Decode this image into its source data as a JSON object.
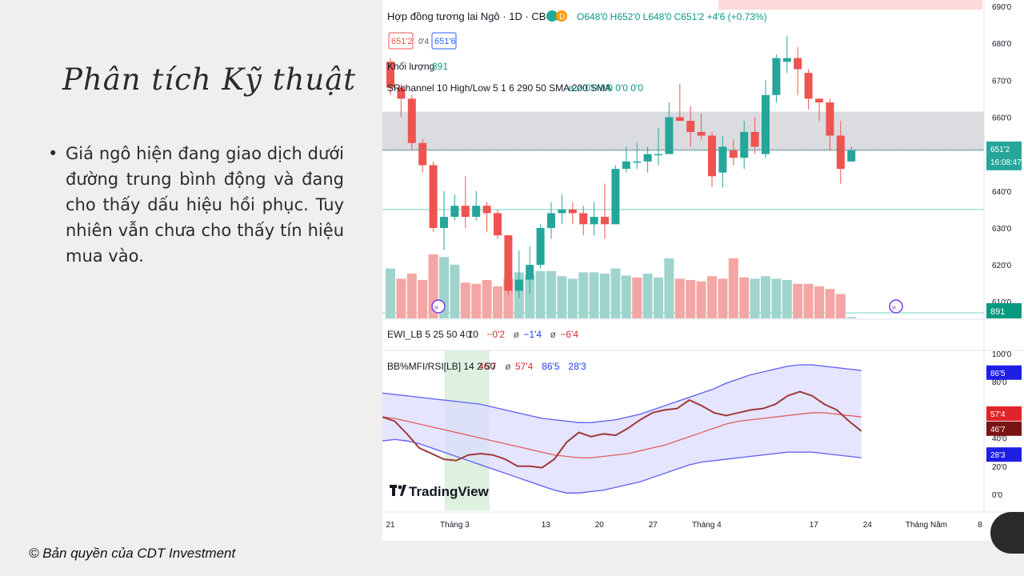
{
  "slide": {
    "title": "Phân tích Kỹ thuật",
    "bullet": "Giá ngô hiện đang giao dịch dưới đường trung bình động và đang cho thấy dấu hiệu hồi phục. Tuy nhiên vẫn chưa cho thấy tín hiệu mua vào.",
    "copyright": "© Bản quyền của CDT Investment"
  },
  "chart_data": {
    "type": "candlestick",
    "header": {
      "title": "Hợp đồng tương lai Ngô · 1D · CBOT",
      "badge": "D",
      "ohlc": "O648'0 H652'0 L648'0 C651'2 +4'6 (+0.73%)",
      "bid": "651'2",
      "spread": "0'4",
      "ask": "651'6",
      "volume_label": "Khối lượng",
      "volume_value": "891",
      "indicator": "SRchannel 10 High/Low 5 1 6 290 50 SMA 200 SMA",
      "indicator_vals": "ø ø 0'0 0'0 0'0 0'0"
    },
    "price_axis": {
      "ticks": [
        "690'0",
        "680'0",
        "670'0",
        "660'0",
        "650'0",
        "640'0",
        "630'0",
        "620'0",
        "610'0"
      ],
      "tick_values": [
        690,
        680,
        670,
        660,
        650,
        640,
        630,
        620,
        610
      ],
      "last_price": "651'2",
      "countdown": "16:08:47",
      "volume_badge": "891"
    },
    "ylim": [
      605.5,
      690
    ],
    "channel": [
      651,
      661.5
    ],
    "support_lines": [
      635,
      607
    ],
    "candles": [
      [
        675,
        668,
        676,
        666
      ],
      [
        668,
        665,
        669,
        660
      ],
      [
        665,
        653,
        666,
        651
      ],
      [
        653,
        647,
        654,
        645
      ],
      [
        647,
        630,
        648,
        629
      ],
      [
        630,
        633,
        640,
        624
      ],
      [
        633,
        636,
        639,
        632
      ],
      [
        636,
        633,
        644,
        630
      ],
      [
        633,
        636,
        640,
        632
      ],
      [
        636,
        634,
        637,
        629
      ],
      [
        634,
        628,
        635,
        627
      ],
      [
        628,
        613,
        628,
        612
      ],
      [
        613,
        616,
        624,
        611
      ],
      [
        616,
        620,
        625,
        612
      ],
      [
        620,
        630,
        631,
        619
      ],
      [
        630,
        634,
        637,
        627
      ],
      [
        634,
        635,
        639,
        631
      ],
      [
        635,
        634,
        637,
        631
      ],
      [
        634,
        631,
        636,
        628
      ],
      [
        631,
        633,
        637,
        628
      ],
      [
        633,
        631,
        642,
        627
      ],
      [
        631,
        646,
        647,
        631
      ],
      [
        646,
        648,
        652,
        645
      ],
      [
        648,
        648,
        653,
        646
      ],
      [
        648,
        650,
        652,
        645
      ],
      [
        650,
        650,
        657,
        647
      ],
      [
        650,
        660,
        664,
        650
      ],
      [
        660,
        659,
        669,
        659
      ],
      [
        659,
        656,
        663,
        652
      ],
      [
        656,
        655,
        661,
        654
      ],
      [
        655,
        644,
        656,
        641
      ],
      [
        645,
        652,
        655,
        641
      ],
      [
        651,
        649,
        654,
        647
      ],
      [
        649,
        656,
        659,
        646
      ],
      [
        656,
        652,
        660,
        650
      ],
      [
        650,
        666,
        670,
        649
      ],
      [
        666,
        676,
        677,
        664
      ],
      [
        675,
        676,
        682,
        672
      ],
      [
        676,
        673,
        679,
        666
      ],
      [
        672,
        665,
        673,
        662
      ],
      [
        665,
        664,
        665,
        659
      ],
      [
        664,
        655,
        665,
        651
      ],
      [
        655,
        646,
        659,
        642
      ],
      [
        648,
        651,
        652,
        648
      ]
    ],
    "volume": [
      {
        "v": 0.78,
        "up": true
      },
      {
        "v": 0.62,
        "up": false
      },
      {
        "v": 0.7,
        "up": false
      },
      {
        "v": 0.6,
        "up": false
      },
      {
        "v": 1.0,
        "up": false
      },
      {
        "v": 0.96,
        "up": true
      },
      {
        "v": 0.84,
        "up": true
      },
      {
        "v": 0.56,
        "up": false
      },
      {
        "v": 0.54,
        "up": false
      },
      {
        "v": 0.6,
        "up": false
      },
      {
        "v": 0.5,
        "up": false
      },
      {
        "v": 0.62,
        "up": false
      },
      {
        "v": 0.72,
        "up": true
      },
      {
        "v": 0.68,
        "up": true
      },
      {
        "v": 0.74,
        "up": true
      },
      {
        "v": 0.74,
        "up": true
      },
      {
        "v": 0.66,
        "up": true
      },
      {
        "v": 0.62,
        "up": true
      },
      {
        "v": 0.72,
        "up": true
      },
      {
        "v": 0.72,
        "up": true
      },
      {
        "v": 0.7,
        "up": true
      },
      {
        "v": 0.78,
        "up": true
      },
      {
        "v": 0.67,
        "up": true
      },
      {
        "v": 0.64,
        "up": false
      },
      {
        "v": 0.7,
        "up": true
      },
      {
        "v": 0.64,
        "up": true
      },
      {
        "v": 0.94,
        "up": true
      },
      {
        "v": 0.62,
        "up": false
      },
      {
        "v": 0.6,
        "up": false
      },
      {
        "v": 0.58,
        "up": false
      },
      {
        "v": 0.66,
        "up": false
      },
      {
        "v": 0.62,
        "up": false
      },
      {
        "v": 0.94,
        "up": false
      },
      {
        "v": 0.64,
        "up": false
      },
      {
        "v": 0.62,
        "up": true
      },
      {
        "v": 0.66,
        "up": true
      },
      {
        "v": 0.62,
        "up": true
      },
      {
        "v": 0.6,
        "up": true
      },
      {
        "v": 0.54,
        "up": false
      },
      {
        "v": 0.54,
        "up": false
      },
      {
        "v": 0.5,
        "up": false
      },
      {
        "v": 0.46,
        "up": false
      },
      {
        "v": 0.38,
        "up": false
      },
      {
        "v": 0.02,
        "up": true
      }
    ],
    "ewi": {
      "label": "EWI_LB 5 25 50 4 10",
      "vals": [
        {
          "text": "0'0",
          "color": "#555555"
        },
        {
          "text": "−0'2",
          "color": "#d32f2f"
        },
        {
          "text": "ø",
          "color": "#555555"
        },
        {
          "text": "−1'4",
          "color": "#1e40ff"
        },
        {
          "text": "ø",
          "color": "#555555"
        },
        {
          "text": "−6'4",
          "color": "#d32f2f"
        }
      ]
    },
    "osc": {
      "label": "BB%MFI/RSI[LB] 14 2 50",
      "vals": [
        {
          "text": "46'7",
          "color": "#a52a2a"
        },
        {
          "text": "ø",
          "color": "#555555"
        },
        {
          "text": "57'4",
          "color": "#d32f2f"
        },
        {
          "text": "86'5",
          "color": "#1e40ff"
        },
        {
          "text": "28'3",
          "color": "#1e40ff"
        }
      ],
      "ticks": [
        "100'0",
        "80'0",
        "60'0",
        "40'0",
        "20'0",
        "0'0"
      ],
      "tick_values": [
        100,
        80,
        60,
        40,
        20,
        0
      ],
      "ylim": [
        0,
        100
      ],
      "upper": [
        72,
        71,
        70,
        69,
        68,
        67,
        66,
        65,
        64,
        62,
        60,
        58,
        56,
        54,
        53,
        52,
        51,
        51,
        52,
        53,
        55,
        57,
        60,
        63,
        66,
        69,
        72,
        75,
        79,
        82,
        85,
        87,
        89,
        91,
        92,
        92,
        91,
        90,
        89,
        88
      ],
      "lower": [
        38,
        39,
        38,
        36,
        33,
        30,
        27,
        24,
        21,
        18,
        15,
        12,
        9,
        6,
        3,
        1,
        1,
        2,
        3,
        5,
        7,
        9,
        12,
        15,
        18,
        21,
        23,
        24,
        25,
        26,
        27,
        28,
        29,
        30,
        30,
        30,
        29,
        28,
        27,
        26
      ],
      "middle": [
        55,
        54,
        52,
        50,
        48,
        46,
        44,
        42,
        40,
        38,
        36,
        34,
        32,
        30,
        28,
        27,
        26,
        26,
        27,
        28,
        29,
        31,
        33,
        35,
        38,
        41,
        44,
        47,
        50,
        52,
        53,
        54,
        55,
        56,
        57,
        58,
        58,
        57,
        56,
        55
      ],
      "mfi": [
        55,
        52,
        43,
        33,
        29,
        25,
        24,
        28,
        29,
        28,
        25,
        20,
        20,
        19,
        25,
        37,
        44,
        41,
        43,
        42,
        47,
        53,
        58,
        60,
        61,
        67,
        63,
        58,
        56,
        58,
        60,
        61,
        64,
        70,
        73,
        70,
        64,
        60,
        52,
        45
      ],
      "upper_badge": "86'5",
      "mid_badge": "57'4",
      "mfi_badge": "46'7",
      "lower_badge": "28'3",
      "highlight": [
        5,
        8
      ]
    },
    "x_ticks": [
      {
        "label": "21",
        "pos": 0
      },
      {
        "label": "Tháng 3",
        "pos": 6
      },
      {
        "label": "13",
        "pos": 14.5
      },
      {
        "label": "20",
        "pos": 19.5
      },
      {
        "label": "27",
        "pos": 24.5
      },
      {
        "label": "Tháng 4",
        "pos": 29.5
      },
      {
        "label": "17",
        "pos": 39.5
      },
      {
        "label": "24",
        "pos": 44.5
      },
      {
        "label": "Tháng Năm",
        "pos": 50
      },
      {
        "label": "8",
        "pos": 55
      }
    ],
    "logo": "TradingView",
    "colors": {
      "up": "#26a69a",
      "down": "#ef5350",
      "vol_up": "#9fd4cd",
      "vol_down": "#f3a6a4",
      "band": "#6868f0",
      "band_fill": "#dcdcff",
      "mfi": "#a0393c",
      "mid": "#e06060",
      "channel": "#cfd0d5",
      "support": "#9fe4d4"
    }
  }
}
